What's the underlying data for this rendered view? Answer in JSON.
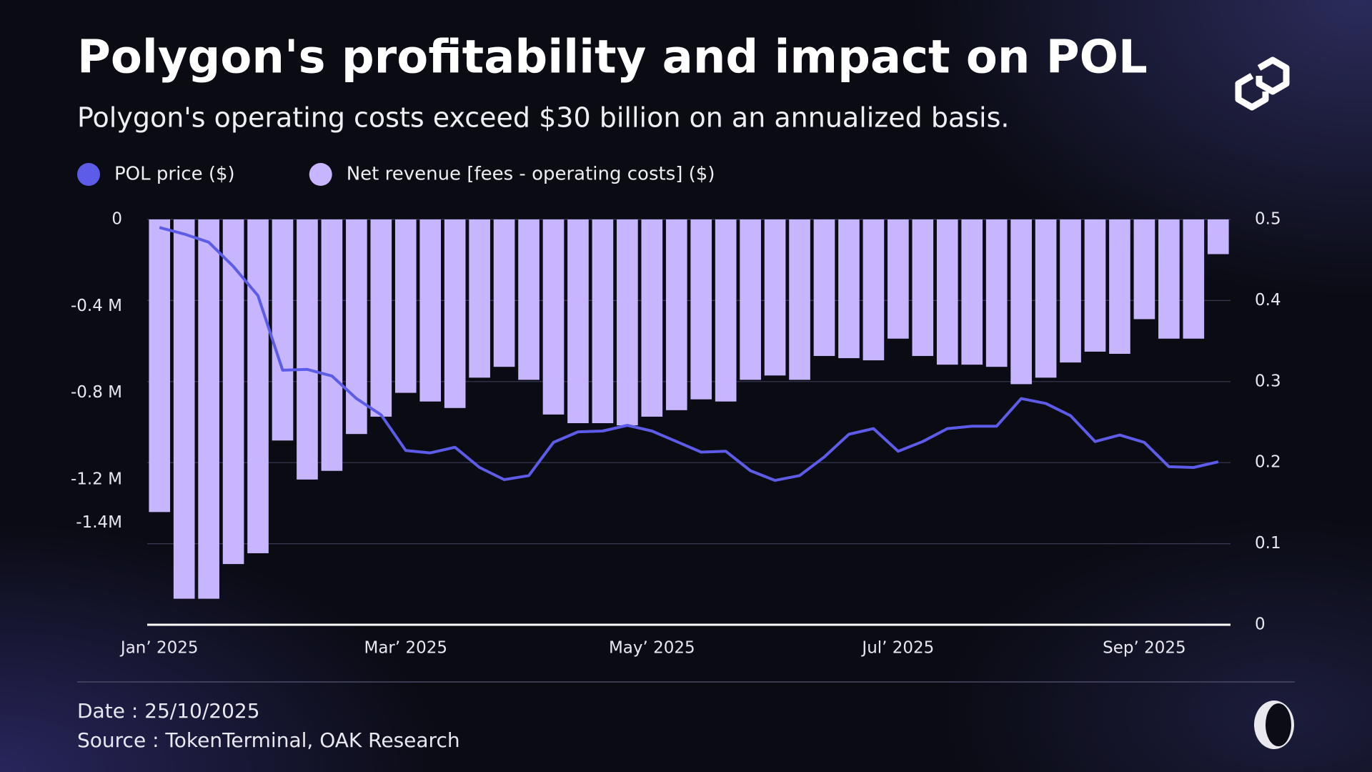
{
  "chart_data": {
    "type": "bar",
    "title": "Polygon's profitability and impact on POL",
    "subtitle": "Polygon's operating costs exceed $30 billion on an annualized basis.",
    "footnotes": [
      "Date : 25/10/2025",
      "Source : TokenTerminal, OAK Research"
    ],
    "categories": [
      "Jan’ 2025",
      null,
      null,
      null,
      null,
      null,
      null,
      null,
      null,
      null,
      "Mar’ 2025",
      null,
      null,
      null,
      null,
      null,
      null,
      null,
      null,
      null,
      "May’ 2025",
      null,
      null,
      null,
      null,
      null,
      null,
      null,
      null,
      null,
      "Jul’ 2025",
      null,
      null,
      null,
      null,
      null,
      null,
      null,
      null,
      null,
      "Sep’ 2025",
      null,
      null,
      null
    ],
    "series": [
      {
        "name": "POL price ($)",
        "type": "line",
        "axis": "y2",
        "color": "#5c5ce8",
        "values": [
          0.49,
          0.482,
          0.472,
          0.442,
          0.406,
          0.314,
          0.315,
          0.307,
          0.279,
          0.259,
          0.215,
          0.212,
          0.219,
          0.194,
          0.179,
          0.184,
          0.225,
          0.238,
          0.239,
          0.246,
          0.239,
          0.226,
          0.213,
          0.214,
          0.19,
          0.178,
          0.184,
          0.207,
          0.235,
          0.242,
          0.214,
          0.226,
          0.242,
          0.245,
          0.245,
          0.279,
          0.273,
          0.258,
          0.226,
          0.234,
          0.225,
          0.195,
          0.194,
          0.201
        ]
      },
      {
        "name": "Net revenue [fees - operating costs] ($)",
        "type": "bar",
        "color": "#c7b6ff",
        "values": [
          -1.35,
          -1.75,
          -1.75,
          -1.59,
          -1.54,
          -1.02,
          -1.2,
          -1.16,
          -0.99,
          -0.91,
          -0.8,
          -0.84,
          -0.87,
          -0.73,
          -0.68,
          -0.74,
          -0.9,
          -0.94,
          -0.94,
          -0.95,
          -0.91,
          -0.88,
          -0.83,
          -0.84,
          -0.74,
          -0.72,
          -0.74,
          -0.63,
          -0.64,
          -0.65,
          -0.55,
          -0.63,
          -0.67,
          -0.67,
          -0.68,
          -0.76,
          -0.73,
          -0.66,
          -0.61,
          -0.62,
          -0.46,
          -0.55,
          -0.55,
          -0.16
        ]
      }
    ],
    "ylim": [
      -1.87,
      0
    ],
    "yticks": [
      0,
      {
        "value": -0.4,
        "label": "-0.4 M"
      },
      {
        "value": -0.8,
        "label": "-0.8 M"
      },
      {
        "value": -1.2,
        "label": "-1.2 M"
      },
      {
        "value": -1.4,
        "label": "-1.4M"
      }
    ],
    "y2lim": [
      0,
      0.5
    ],
    "y2ticks": [
      0.5,
      0.4,
      0.3,
      0.2,
      0.1,
      0
    ],
    "grid": true
  }
}
